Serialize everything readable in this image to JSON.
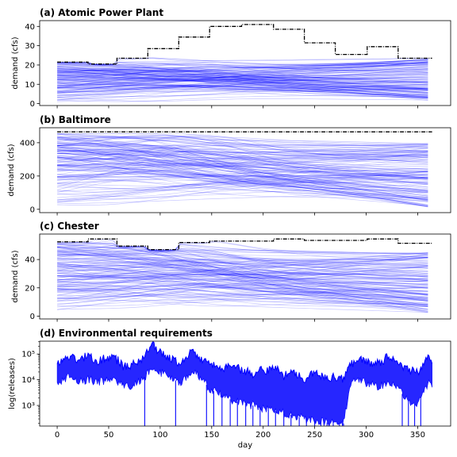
{
  "colors": {
    "series": "#0000ff",
    "envelope": "#000000",
    "axes": "#000000",
    "background": "#ffffff"
  },
  "chart_data": [
    {
      "type": "line",
      "title": "(a) Atomic Power Plant",
      "ylabel": "demand (cfs)",
      "xlabel": "",
      "xlim": [
        -17,
        382
      ],
      "ylim": [
        -1,
        43
      ],
      "x_ticks": [
        0,
        50,
        100,
        150,
        200,
        250,
        300,
        350
      ],
      "x_tick_labels": [
        "",
        "",
        "",
        "",
        "",
        "",
        "",
        ""
      ],
      "y_ticks": [
        0,
        10,
        20,
        30,
        40
      ],
      "y_tick_labels": [
        "0",
        "10",
        "20",
        "30",
        "40"
      ],
      "grid": false,
      "legend": "none",
      "series": [
        {
          "style": "black dashed step envelope",
          "points": [
            [
              0,
              21.5
            ],
            [
              30,
              21.5
            ],
            [
              30,
              20.5
            ],
            [
              58,
              20.5
            ],
            [
              58,
              23.5
            ],
            [
              88,
              23.5
            ],
            [
              88,
              28.5
            ],
            [
              118,
              28.5
            ],
            [
              118,
              34.5
            ],
            [
              148,
              34.5
            ],
            [
              148,
              40
            ],
            [
              179,
              40
            ],
            [
              179,
              41
            ],
            [
              210,
              41
            ],
            [
              210,
              38.5
            ],
            [
              240,
              38.5
            ],
            [
              240,
              31.5
            ],
            [
              270,
              31.5
            ],
            [
              270,
              25.5
            ],
            [
              301,
              25.5
            ],
            [
              301,
              29.5
            ],
            [
              331,
              29.5
            ],
            [
              331,
              23.5
            ],
            [
              364,
              23.5
            ]
          ]
        },
        {
          "style": "blue trace ensemble",
          "fan": {
            "start_min": 1,
            "start_max": 21.5,
            "end_min": 1.5,
            "end_max": 23.5,
            "upper_envelope": "black"
          }
        }
      ]
    },
    {
      "type": "line",
      "title": "(b) Baltimore",
      "ylabel": "demand (cfs)",
      "xlabel": "",
      "xlim": [
        -17,
        382
      ],
      "ylim": [
        -20,
        490
      ],
      "x_ticks": [
        0,
        50,
        100,
        150,
        200,
        250,
        300,
        350
      ],
      "x_tick_labels": [
        "",
        "",
        "",
        "",
        "",
        "",
        "",
        ""
      ],
      "y_ticks": [
        0,
        200,
        400
      ],
      "y_tick_labels": [
        "0",
        "200",
        "400"
      ],
      "grid": false,
      "legend": "none",
      "series": [
        {
          "style": "black dashed step envelope",
          "points": [
            [
              0,
              465
            ],
            [
              364,
              465
            ]
          ]
        },
        {
          "style": "blue trace ensemble",
          "fan": {
            "start_min": 10,
            "start_max": 455,
            "end_min": 10,
            "end_max": 400,
            "upper_envelope": "none"
          }
        }
      ]
    },
    {
      "type": "line",
      "title": "(c) Chester",
      "ylabel": "demand (cfs)",
      "xlabel": "",
      "xlim": [
        -17,
        382
      ],
      "ylim": [
        -2,
        58
      ],
      "x_ticks": [
        0,
        50,
        100,
        150,
        200,
        250,
        300,
        350
      ],
      "x_tick_labels": [
        "",
        "",
        "",
        "",
        "",
        "",
        "",
        ""
      ],
      "y_ticks": [
        0,
        20,
        40
      ],
      "y_tick_labels": [
        "0",
        "20",
        "40"
      ],
      "grid": false,
      "legend": "none",
      "series": [
        {
          "style": "black dashed step envelope",
          "points": [
            [
              0,
              52.5
            ],
            [
              30,
              52.5
            ],
            [
              30,
              54.5
            ],
            [
              58,
              54.5
            ],
            [
              58,
              49.5
            ],
            [
              88,
              49.5
            ],
            [
              88,
              47
            ],
            [
              118,
              47
            ],
            [
              118,
              52
            ],
            [
              148,
              52
            ],
            [
              148,
              53
            ],
            [
              210,
              53
            ],
            [
              210,
              54.5
            ],
            [
              240,
              54.5
            ],
            [
              240,
              53.5
            ],
            [
              301,
              53.5
            ],
            [
              301,
              54.5
            ],
            [
              331,
              54.5
            ],
            [
              331,
              51.5
            ],
            [
              364,
              51.5
            ]
          ]
        },
        {
          "style": "blue trace ensemble",
          "fan": {
            "start_min": 2,
            "start_max": 52,
            "end_min": 2,
            "end_max": 45,
            "upper_envelope": "black"
          }
        }
      ]
    },
    {
      "type": "line",
      "title": "(d) Environmental requirements",
      "ylabel": "log(releases)",
      "xlabel": "day",
      "xlim": [
        -17,
        382
      ],
      "ylim_log10": [
        2.2,
        5.5
      ],
      "x_ticks": [
        0,
        50,
        100,
        150,
        200,
        250,
        300,
        350
      ],
      "x_tick_labels": [
        "0",
        "50",
        "100",
        "150",
        "200",
        "250",
        "300",
        "350"
      ],
      "y_ticks_log10": [
        3,
        4,
        5
      ],
      "y_tick_labels": [
        "10³",
        "10⁴",
        "10⁵"
      ],
      "grid": false,
      "legend": "none",
      "series": [
        {
          "style": "blue log-scale release band",
          "upper_log10": [
            [
              0,
              4.6
            ],
            [
              10,
              4.9
            ],
            [
              20,
              4.8
            ],
            [
              30,
              4.9
            ],
            [
              40,
              4.75
            ],
            [
              55,
              4.9
            ],
            [
              65,
              4.5
            ],
            [
              75,
              4.6
            ],
            [
              85,
              4.9
            ],
            [
              92,
              5.35
            ],
            [
              100,
              5.05
            ],
            [
              110,
              4.85
            ],
            [
              120,
              4.6
            ],
            [
              125,
              4.9
            ],
            [
              132,
              5.2
            ],
            [
              140,
              4.75
            ],
            [
              150,
              4.55
            ],
            [
              160,
              4.45
            ],
            [
              170,
              4.6
            ],
            [
              180,
              4.35
            ],
            [
              190,
              4.25
            ],
            [
              200,
              4.45
            ],
            [
              205,
              4.3
            ],
            [
              210,
              4.55
            ],
            [
              220,
              4.15
            ],
            [
              230,
              4.3
            ],
            [
              240,
              4.05
            ],
            [
              250,
              4.25
            ],
            [
              260,
              4.05
            ],
            [
              270,
              4.1
            ],
            [
              278,
              4.05
            ],
            [
              285,
              4.6
            ],
            [
              292,
              4.85
            ],
            [
              300,
              4.75
            ],
            [
              310,
              4.6
            ],
            [
              320,
              4.85
            ],
            [
              330,
              4.65
            ],
            [
              340,
              4.4
            ],
            [
              350,
              4.3
            ],
            [
              360,
              4.8
            ],
            [
              364,
              4.7
            ]
          ],
          "lower_log10": [
            [
              0,
              3.8
            ],
            [
              10,
              4.1
            ],
            [
              20,
              3.9
            ],
            [
              30,
              4.0
            ],
            [
              40,
              3.9
            ],
            [
              55,
              4.0
            ],
            [
              65,
              3.7
            ],
            [
              75,
              3.85
            ],
            [
              85,
              4.1
            ],
            [
              92,
              4.55
            ],
            [
              100,
              4.3
            ],
            [
              110,
              4.1
            ],
            [
              120,
              3.85
            ],
            [
              125,
              4.05
            ],
            [
              132,
              4.4
            ],
            [
              140,
              4.0
            ],
            [
              150,
              3.6
            ],
            [
              160,
              3.4
            ],
            [
              170,
              3.2
            ],
            [
              180,
              3.1
            ],
            [
              190,
              3.0
            ],
            [
              200,
              2.9
            ],
            [
              210,
              2.8
            ],
            [
              220,
              2.7
            ],
            [
              230,
              2.6
            ],
            [
              240,
              2.5
            ],
            [
              250,
              2.4
            ],
            [
              260,
              2.35
            ],
            [
              270,
              2.3
            ],
            [
              278,
              2.3
            ],
            [
              285,
              3.85
            ],
            [
              292,
              4.0
            ],
            [
              300,
              3.9
            ],
            [
              310,
              3.75
            ],
            [
              320,
              3.85
            ],
            [
              330,
              3.7
            ],
            [
              340,
              3.2
            ],
            [
              350,
              3.0
            ],
            [
              360,
              3.9
            ],
            [
              364,
              3.8
            ]
          ],
          "deep_spikes_days": [
            85,
            115,
            145,
            152,
            160,
            168,
            175,
            183,
            190,
            197,
            205,
            212,
            220,
            227,
            235,
            242,
            250,
            256,
            262,
            268,
            274,
            278,
            335,
            341,
            347,
            353
          ]
        }
      ]
    }
  ]
}
